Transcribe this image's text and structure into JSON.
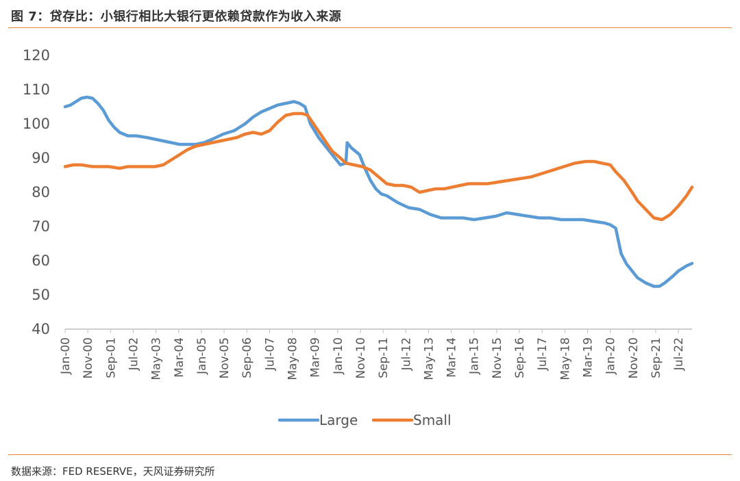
{
  "header": {
    "title": "图 7：贷存比：小银行相比大银行更依赖贷款作为收入来源"
  },
  "footer": {
    "source": "数据来源：FED RESERVE，天风证券研究所"
  },
  "colors": {
    "large": "#5b9bd5",
    "small": "#ed7d31",
    "rule": "#e5852f",
    "axis": "#bfbfbf"
  },
  "chart_data": {
    "type": "line",
    "title": "贷存比：小银行相比大银行更依赖贷款作为收入来源",
    "xlabel": "",
    "ylabel": "",
    "ylim": [
      40,
      120
    ],
    "yticks": [
      40,
      50,
      60,
      70,
      80,
      90,
      100,
      110,
      120
    ],
    "xlim": [
      2000.0,
      2023.0
    ],
    "xtick_labels": [
      "Jan-00",
      "Nov-00",
      "Sep-01",
      "Jul-02",
      "May-03",
      "Mar-04",
      "Jan-05",
      "Nov-05",
      "Sep-06",
      "Jul-07",
      "May-08",
      "Mar-09",
      "Jan-10",
      "Nov-10",
      "Sep-11",
      "Jul-12",
      "May-13",
      "Mar-14",
      "Jan-15",
      "Nov-15",
      "Sep-16",
      "Jul-17",
      "May-18",
      "Mar-19",
      "Jan-20",
      "Nov-20",
      "Sep-21",
      "Jul-22"
    ],
    "legend": [
      "Large",
      "Small"
    ],
    "legend_position": "bottom",
    "series": [
      {
        "name": "Large",
        "x": [
          2000.0,
          2000.2,
          2000.4,
          2000.6,
          2000.8,
          2001.0,
          2001.2,
          2001.4,
          2001.6,
          2001.8,
          2002.0,
          2002.3,
          2002.6,
          2003.0,
          2003.3,
          2003.6,
          2003.9,
          2004.2,
          2004.5,
          2004.8,
          2005.1,
          2005.4,
          2005.8,
          2006.2,
          2006.6,
          2006.9,
          2007.2,
          2007.5,
          2007.8,
          2008.1,
          2008.4,
          2008.6,
          2008.8,
          2009.0,
          2009.3,
          2009.6,
          2009.9,
          2010.1,
          2010.3,
          2010.35,
          2010.5,
          2010.8,
          2011.0,
          2011.2,
          2011.4,
          2011.6,
          2011.8,
          2012.2,
          2012.6,
          2013.0,
          2013.4,
          2013.8,
          2014.2,
          2014.6,
          2015.0,
          2015.4,
          2015.8,
          2016.2,
          2016.6,
          2017.0,
          2017.4,
          2017.8,
          2018.2,
          2018.6,
          2019.0,
          2019.4,
          2019.8,
          2020.0,
          2020.2,
          2020.4,
          2020.6,
          2020.8,
          2021.0,
          2021.3,
          2021.6,
          2021.8,
          2022.0,
          2022.3,
          2022.5,
          2022.8,
          2023.0
        ],
        "values": [
          105,
          105.5,
          106.5,
          107.5,
          107.8,
          107.5,
          106,
          104,
          101,
          99,
          97.5,
          96.5,
          96.5,
          96,
          95.5,
          95,
          94.5,
          94,
          94,
          94,
          94.5,
          95.5,
          97,
          98,
          100,
          102,
          103.5,
          104.5,
          105.5,
          106,
          106.5,
          106,
          105,
          100,
          96,
          93,
          90,
          88,
          88.5,
          94.5,
          93,
          91,
          87,
          83.5,
          81,
          79.5,
          79,
          77,
          75.5,
          75,
          73.5,
          72.5,
          72.5,
          72.5,
          72,
          72.5,
          73,
          74,
          73.5,
          73,
          72.5,
          72.5,
          72,
          72,
          72,
          71.5,
          71,
          70.5,
          69.5,
          62,
          59,
          57,
          55,
          53.5,
          52.5,
          52.5,
          53.5,
          55.5,
          57,
          58.5,
          59.2
        ]
      },
      {
        "name": "Small",
        "x": [
          2000.0,
          2000.3,
          2000.6,
          2001.0,
          2001.3,
          2001.6,
          2002.0,
          2002.3,
          2002.6,
          2003.0,
          2003.3,
          2003.6,
          2003.9,
          2004.2,
          2004.5,
          2004.8,
          2005.1,
          2005.4,
          2005.7,
          2006.0,
          2006.3,
          2006.6,
          2006.9,
          2007.2,
          2007.5,
          2007.8,
          2008.1,
          2008.4,
          2008.7,
          2008.9,
          2009.2,
          2009.5,
          2009.8,
          2010.1,
          2010.3,
          2010.6,
          2010.9,
          2011.2,
          2011.5,
          2011.8,
          2012.1,
          2012.4,
          2012.7,
          2013.0,
          2013.3,
          2013.6,
          2013.9,
          2014.2,
          2014.5,
          2014.8,
          2015.1,
          2015.5,
          2015.9,
          2016.3,
          2016.7,
          2017.1,
          2017.5,
          2017.9,
          2018.3,
          2018.7,
          2019.1,
          2019.4,
          2019.7,
          2020.0,
          2020.2,
          2020.5,
          2020.8,
          2021.0,
          2021.3,
          2021.6,
          2021.9,
          2022.2,
          2022.5,
          2022.8,
          2023.0
        ],
        "values": [
          87.5,
          88,
          88,
          87.5,
          87.5,
          87.5,
          87,
          87.5,
          87.5,
          87.5,
          87.5,
          88,
          89.5,
          91,
          92.5,
          93.5,
          94,
          94.5,
          95,
          95.5,
          96,
          97,
          97.5,
          97,
          98,
          100.5,
          102.5,
          103,
          103,
          102.5,
          99,
          95.5,
          92,
          90,
          88.5,
          88,
          87.5,
          86.5,
          84.5,
          82.5,
          82,
          82,
          81.5,
          80,
          80.5,
          81,
          81,
          81.5,
          82,
          82.5,
          82.5,
          82.5,
          83,
          83.5,
          84,
          84.5,
          85.5,
          86.5,
          87.5,
          88.5,
          89,
          89,
          88.5,
          88,
          86,
          83.5,
          80,
          77.5,
          75,
          72.5,
          72,
          73.5,
          76,
          79,
          81.5
        ]
      }
    ]
  }
}
